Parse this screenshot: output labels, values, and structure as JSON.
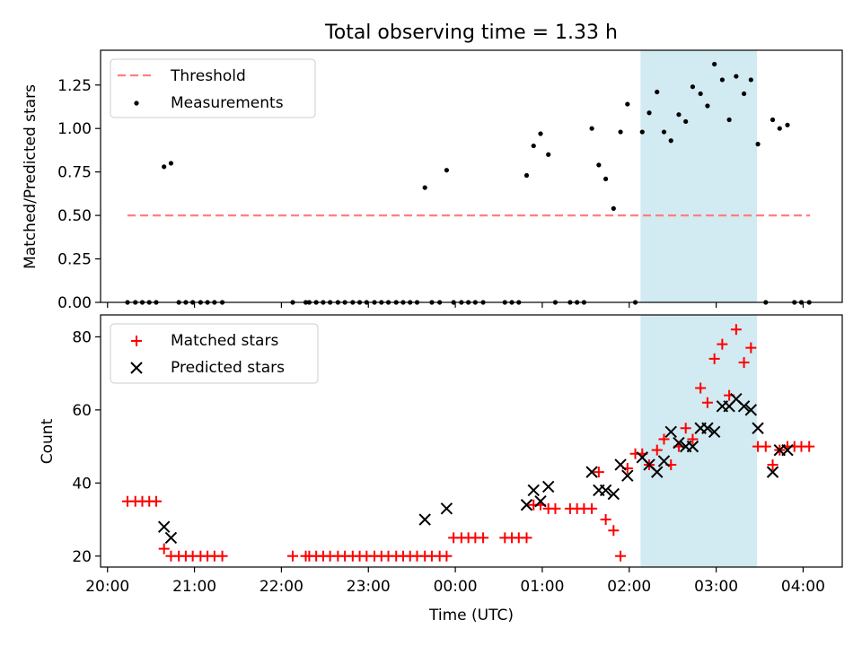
{
  "title": "Total observing time = 1.33 h",
  "colors": {
    "threshold": "#ff7f7f",
    "measurements": "#000000",
    "matched": "#ff0000",
    "predicted": "#000000",
    "shade": "#add8e6"
  },
  "chart_data": [
    {
      "type": "scatter",
      "ylabel": "Matched/Predicted stars",
      "xlim": [
        19.92,
        28.45
      ],
      "ylim": [
        0,
        1.45
      ],
      "yticks": [
        0.0,
        0.25,
        0.5,
        0.75,
        1.0,
        1.25
      ],
      "ytick_labels": [
        "0.00",
        "0.25",
        "0.50",
        "0.75",
        "1.00",
        "1.25"
      ],
      "legend": {
        "placement": "top-left",
        "entries": [
          "Threshold",
          "Measurements"
        ]
      },
      "shaded_region": [
        26.13,
        27.47
      ],
      "threshold": {
        "name": "Threshold",
        "y": 0.5,
        "x_range": [
          20.23,
          28.08
        ]
      },
      "series": [
        {
          "name": "Measurements",
          "x": [
            20.23,
            20.32,
            20.4,
            20.48,
            20.56,
            20.65,
            20.73,
            20.82,
            20.9,
            20.98,
            21.07,
            21.15,
            21.23,
            21.32,
            22.13,
            22.28,
            22.32,
            22.4,
            22.48,
            22.56,
            22.65,
            22.73,
            22.82,
            22.9,
            22.98,
            23.07,
            23.15,
            23.23,
            23.32,
            23.4,
            23.48,
            23.56,
            23.65,
            23.73,
            23.82,
            23.9,
            23.98,
            24.07,
            24.15,
            24.23,
            24.32,
            24.57,
            24.65,
            24.73,
            24.82,
            24.9,
            24.98,
            25.07,
            25.15,
            25.32,
            25.4,
            25.48,
            25.57,
            25.65,
            25.73,
            25.82,
            25.9,
            25.98,
            26.07,
            26.15,
            26.23,
            26.32,
            26.4,
            26.48,
            26.57,
            26.65,
            26.73,
            26.82,
            26.9,
            26.98,
            27.07,
            27.15,
            27.23,
            27.32,
            27.4,
            27.48,
            27.57,
            27.65,
            27.73,
            27.82,
            27.9,
            27.98,
            28.07
          ],
          "y": [
            0,
            0,
            0,
            0,
            0,
            0.78,
            0.8,
            0,
            0,
            0,
            0,
            0,
            0,
            0,
            0,
            0,
            0,
            0,
            0,
            0,
            0,
            0,
            0,
            0,
            0,
            0,
            0,
            0,
            0,
            0,
            0,
            0,
            0.66,
            0,
            0,
            0.76,
            0,
            0,
            0,
            0,
            0,
            0,
            0,
            0,
            0.73,
            0.9,
            0.97,
            0.85,
            0,
            0,
            0,
            0,
            1.0,
            0.79,
            0.71,
            0.54,
            0.98,
            1.14,
            0,
            0.98,
            1.09,
            1.21,
            0.98,
            0.93,
            1.08,
            1.04,
            1.24,
            1.2,
            1.13,
            1.37,
            1.28,
            1.05,
            1.3,
            1.2,
            1.28,
            0.91,
            0,
            1.05,
            1.0,
            1.02,
            0,
            0,
            0
          ]
        }
      ]
    },
    {
      "type": "scatter",
      "ylabel": "Count",
      "xlabel": "Time (UTC)",
      "xlim": [
        19.92,
        28.45
      ],
      "ylim": [
        17,
        86
      ],
      "yticks": [
        20,
        40,
        60,
        80
      ],
      "ytick_labels": [
        "20",
        "40",
        "60",
        "80"
      ],
      "xticks": [
        20,
        21,
        22,
        23,
        24,
        25,
        26,
        27,
        28
      ],
      "xtick_labels": [
        "20:00",
        "21:00",
        "22:00",
        "23:00",
        "00:00",
        "01:00",
        "02:00",
        "03:00",
        "04:00"
      ],
      "legend": {
        "placement": "top-left",
        "entries": [
          "Matched stars",
          "Predicted stars"
        ]
      },
      "shaded_region": [
        26.13,
        27.47
      ],
      "series": [
        {
          "name": "Matched stars",
          "x": [
            20.23,
            20.32,
            20.4,
            20.48,
            20.56,
            20.65,
            20.73,
            20.82,
            20.9,
            20.98,
            21.07,
            21.15,
            21.23,
            21.32,
            22.13,
            22.28,
            22.32,
            22.4,
            22.48,
            22.56,
            22.65,
            22.73,
            22.82,
            22.9,
            22.98,
            23.07,
            23.15,
            23.23,
            23.32,
            23.4,
            23.48,
            23.56,
            23.65,
            23.73,
            23.82,
            23.9,
            23.98,
            24.07,
            24.15,
            24.23,
            24.32,
            24.57,
            24.65,
            24.73,
            24.82,
            24.9,
            24.98,
            25.07,
            25.15,
            25.32,
            25.4,
            25.48,
            25.57,
            25.65,
            25.73,
            25.82,
            25.9,
            25.98,
            26.07,
            26.15,
            26.23,
            26.32,
            26.4,
            26.48,
            26.57,
            26.65,
            26.73,
            26.82,
            26.9,
            26.98,
            27.07,
            27.15,
            27.23,
            27.32,
            27.4,
            27.48,
            27.57,
            27.65,
            27.73,
            27.82,
            27.9,
            27.98,
            28.07
          ],
          "y": [
            35,
            35,
            35,
            35,
            35,
            22,
            20,
            20,
            20,
            20,
            20,
            20,
            20,
            20,
            20,
            20,
            20,
            20,
            20,
            20,
            20,
            20,
            20,
            20,
            20,
            20,
            20,
            20,
            20,
            20,
            20,
            20,
            20,
            20,
            20,
            20,
            25,
            25,
            25,
            25,
            25,
            25,
            25,
            25,
            25,
            34,
            34,
            33,
            33,
            33,
            33,
            33,
            33,
            43,
            30,
            27,
            20,
            44,
            48,
            48,
            45,
            49,
            52,
            45,
            50,
            55,
            52,
            66,
            62,
            74,
            78,
            64,
            82,
            73,
            77,
            50,
            50,
            45,
            49,
            50,
            50,
            50,
            50
          ]
        },
        {
          "name": "Predicted stars",
          "x": [
            20.65,
            20.73,
            23.65,
            23.9,
            24.82,
            24.9,
            24.98,
            25.07,
            25.57,
            25.65,
            25.73,
            25.82,
            25.9,
            25.98,
            26.15,
            26.23,
            26.32,
            26.4,
            26.48,
            26.57,
            26.65,
            26.73,
            26.82,
            26.9,
            26.98,
            27.07,
            27.15,
            27.23,
            27.32,
            27.4,
            27.48,
            27.65,
            27.73,
            27.82
          ],
          "y": [
            28,
            25,
            30,
            33,
            34,
            38,
            35,
            39,
            43,
            38,
            38,
            37,
            45,
            42,
            47,
            45,
            43,
            46,
            54,
            51,
            50,
            50,
            55,
            55,
            54,
            61,
            61,
            63,
            61,
            60,
            55,
            43,
            49,
            49
          ]
        }
      ]
    }
  ]
}
